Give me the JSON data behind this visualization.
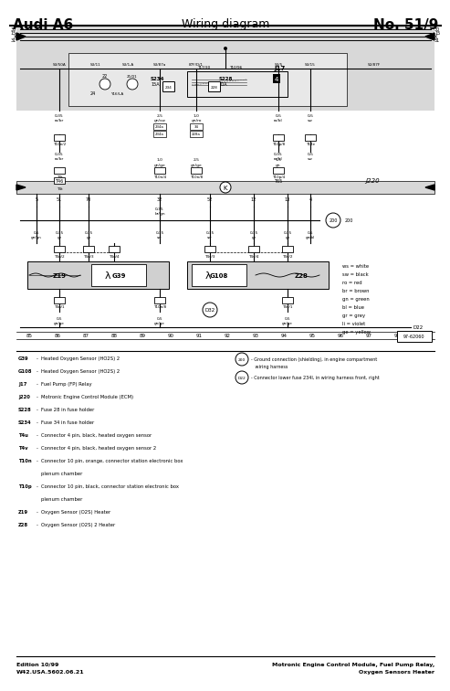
{
  "title_left": "Audi A6",
  "title_center": "Wiring diagram",
  "title_right": "No. 51/9",
  "footer_left": "Edition 10/99\nW42.USA.5602.06.21",
  "footer_right": "Motronic Engine Control Module, Fuel Pump Relay,\nOxygen Sensors Heater",
  "white": "#ffffff",
  "black": "#000000",
  "light_gray": "#d8d8d8",
  "mid_gray": "#c8c8c8",
  "legend_items": [
    [
      "ws",
      "white"
    ],
    [
      "sw",
      "black"
    ],
    [
      "ro",
      "red"
    ],
    [
      "br",
      "brown"
    ],
    [
      "gn",
      "green"
    ],
    [
      "bl",
      "blue"
    ],
    [
      "gr",
      "grey"
    ],
    [
      "li",
      "violet"
    ],
    [
      "ge",
      "yellow"
    ]
  ],
  "bottom_numbers": [
    "85",
    "86",
    "87",
    "88",
    "89",
    "90",
    "91",
    "92",
    "93",
    "94",
    "95",
    "96",
    "97",
    "98"
  ]
}
